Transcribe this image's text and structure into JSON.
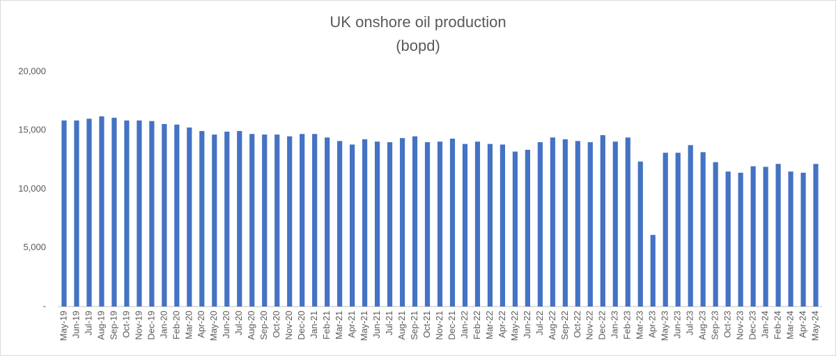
{
  "chart_data": {
    "type": "bar",
    "title": "UK onshore oil production",
    "subtitle": "(bopd)",
    "categories": [
      "May-19",
      "Jun-19",
      "Jul-19",
      "Aug-19",
      "Sep-19",
      "Oct-19",
      "Nov-19",
      "Dec-19",
      "Jan-20",
      "Feb-20",
      "Mar-20",
      "Apr-20",
      "May-20",
      "Jun-20",
      "Jul-20",
      "Aug-20",
      "Sep-20",
      "Oct-20",
      "Nov-20",
      "Dec-20",
      "Jan-21",
      "Feb-21",
      "Mar-21",
      "Apr-21",
      "May-21",
      "Jun-21",
      "Jul-21",
      "Aug-21",
      "Sep-21",
      "Oct-21",
      "Nov-21",
      "Dec-21",
      "Jan-22",
      "Feb-22",
      "Mar-22",
      "Apr-22",
      "May-22",
      "Jun-22",
      "Jul-22",
      "Aug-22",
      "Sep-22",
      "Oct-22",
      "Nov-22",
      "Dec-22",
      "Jan-23",
      "Feb-23",
      "Mar-23",
      "Apr-23",
      "May-23",
      "Jun-23",
      "Jul-23",
      "Aug-23",
      "Sep-23",
      "Oct-23",
      "Nov-23",
      "Dec-23",
      "Jan-24",
      "Feb-24",
      "Mar-24",
      "Apr-24",
      "May-24"
    ],
    "values": [
      15850,
      15850,
      16000,
      16200,
      16080,
      15850,
      15850,
      15800,
      15550,
      15500,
      15250,
      14950,
      14650,
      14900,
      14950,
      14700,
      14650,
      14650,
      14500,
      14700,
      14700,
      14400,
      14100,
      13800,
      14250,
      14050,
      14000,
      14350,
      14500,
      14000,
      14050,
      14300,
      13850,
      14050,
      13850,
      13800,
      13200,
      13350,
      14000,
      14400,
      14250,
      14100,
      14000,
      14600,
      14050,
      14400,
      12350,
      6100,
      13100,
      13100,
      13750,
      13150,
      12300,
      11500,
      11400,
      11950,
      11900,
      12150,
      11500,
      11400,
      12150
    ],
    "color": "#4472c4",
    "ylim": [
      0,
      20000
    ],
    "yticks": [
      {
        "value": 0,
        "label": "-"
      },
      {
        "value": 5000,
        "label": "5,000"
      },
      {
        "value": 10000,
        "label": "10,000"
      },
      {
        "value": 15000,
        "label": "15,000"
      },
      {
        "value": 20000,
        "label": "20,000"
      }
    ],
    "grid": false
  }
}
